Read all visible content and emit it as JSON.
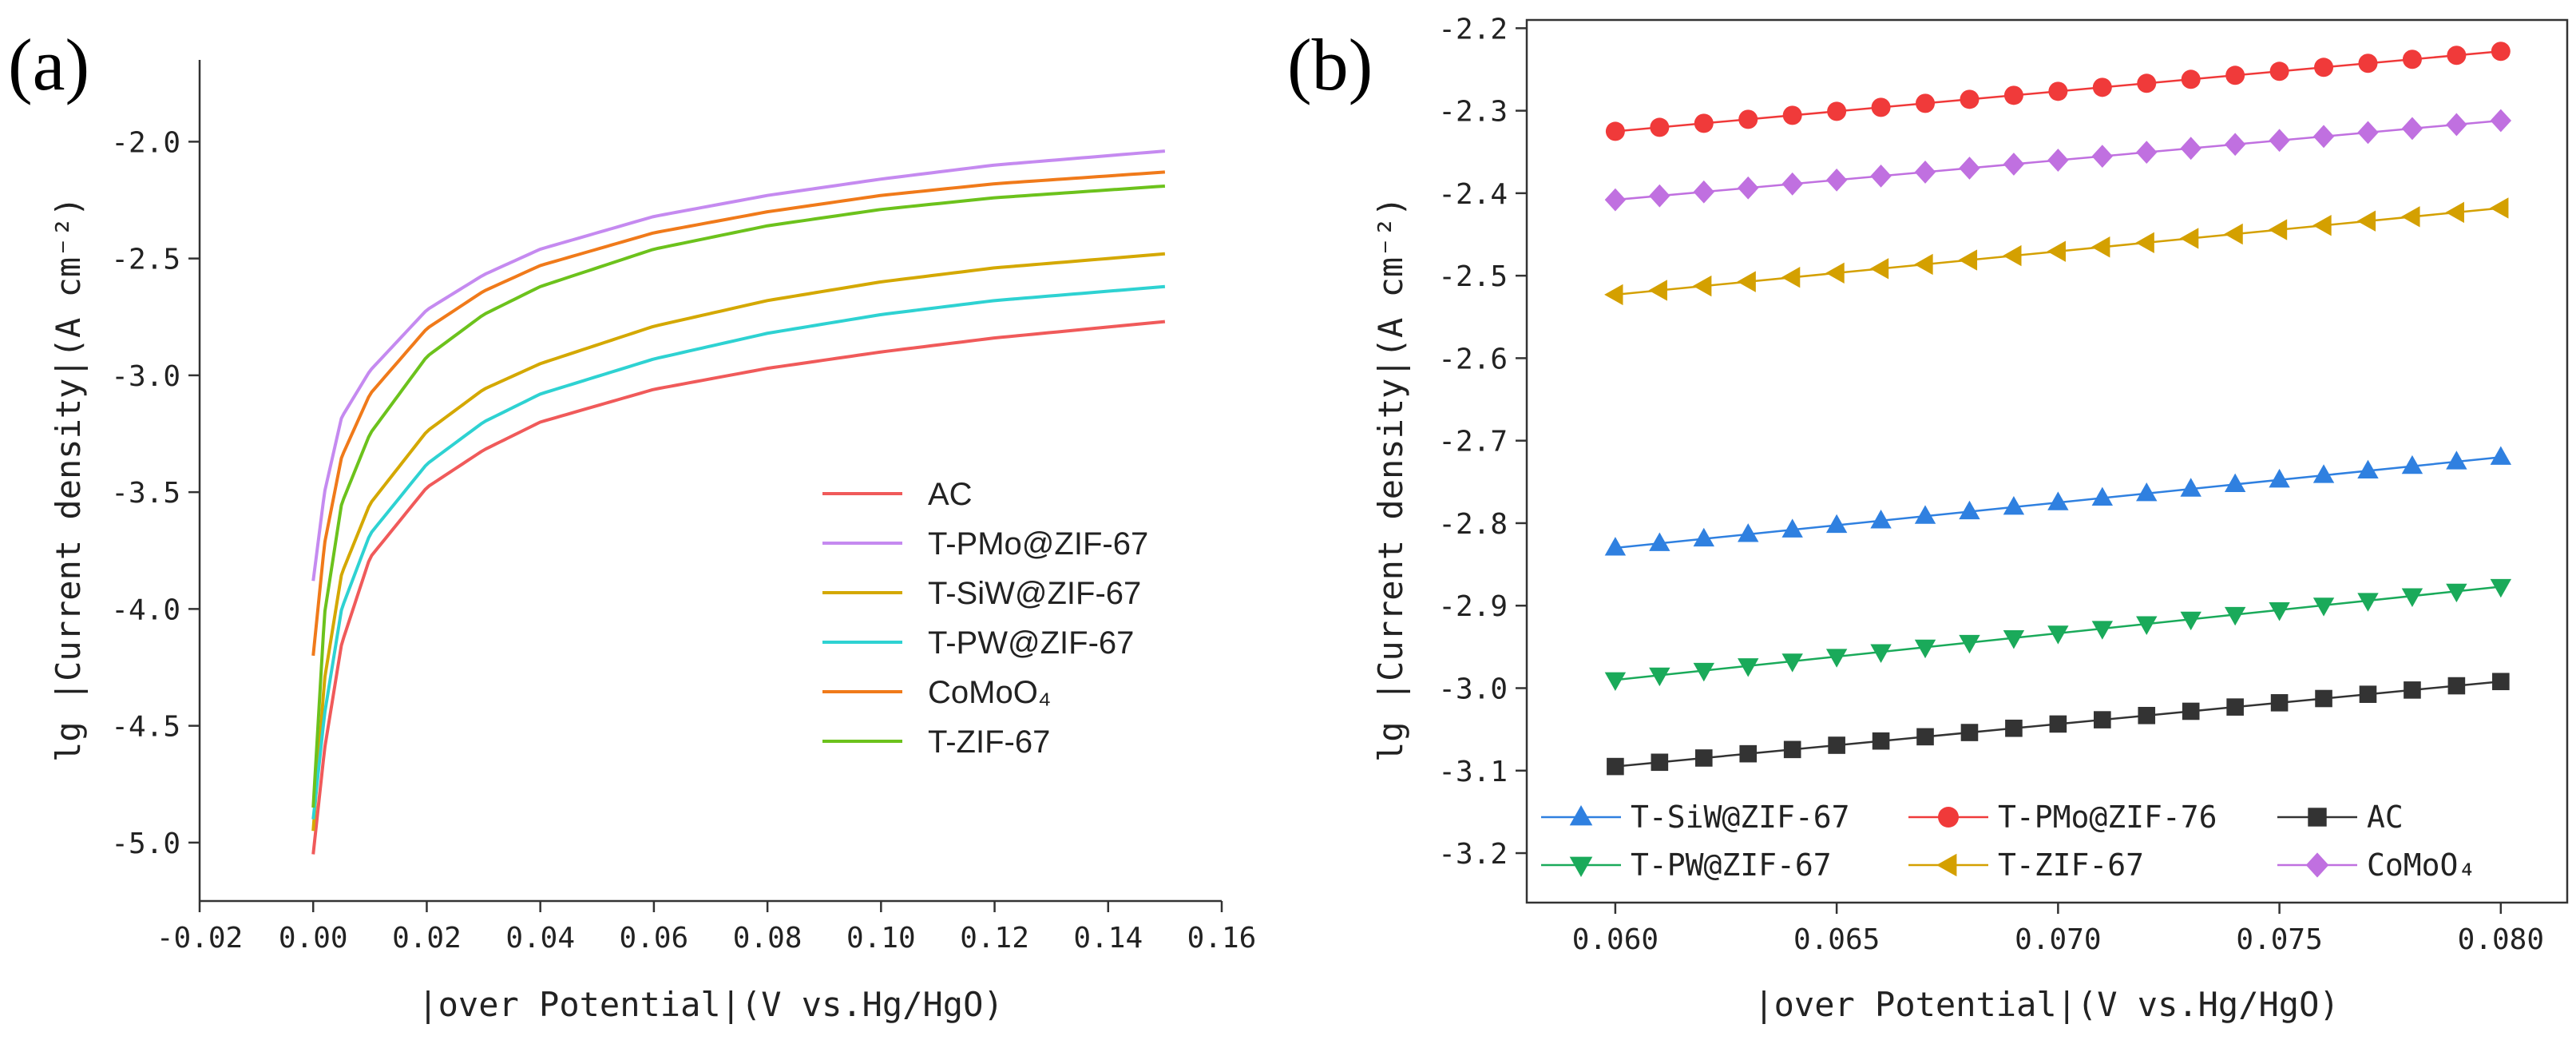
{
  "chart_data": [
    {
      "panel_label": "(a)",
      "type": "line",
      "title": "",
      "xlabel": "|over Potential|(V vs.Hg/HgO)",
      "ylabel": "lg |Current density|(A cm⁻²)",
      "xlim": [
        -0.02,
        0.16
      ],
      "ylim": [
        -5.25,
        -1.65
      ],
      "xticks": [
        -0.02,
        0.0,
        0.02,
        0.04,
        0.06,
        0.08,
        0.1,
        0.12,
        0.14,
        0.16
      ],
      "xtick_labels": [
        "-0.02",
        "0.00",
        "0.02",
        "0.04",
        "0.06",
        "0.08",
        "0.10",
        "0.12",
        "0.14",
        "0.16"
      ],
      "yticks": [
        -5.0,
        -4.5,
        -4.0,
        -3.5,
        -3.0,
        -2.5,
        -2.0
      ],
      "ytick_labels": [
        "-5.0",
        "-4.5",
        "-4.0",
        "-3.5",
        "-3.0",
        "-2.5",
        "-2.0"
      ],
      "legend_position": "lower-right",
      "series": [
        {
          "name": "AC",
          "color": "#f05a5a",
          "x": [
            0.0,
            0.002,
            0.005,
            0.01,
            0.02,
            0.03,
            0.04,
            0.06,
            0.08,
            0.1,
            0.12,
            0.15
          ],
          "y": [
            -5.05,
            -4.6,
            -4.15,
            -3.78,
            -3.48,
            -3.32,
            -3.2,
            -3.06,
            -2.97,
            -2.9,
            -2.84,
            -2.77
          ]
        },
        {
          "name": "T-PMo@ZIF-67",
          "color": "#c58af0",
          "x": [
            0.0,
            0.002,
            0.005,
            0.01,
            0.02,
            0.03,
            0.04,
            0.06,
            0.08,
            0.1,
            0.12,
            0.15
          ],
          "y": [
            -3.88,
            -3.5,
            -3.18,
            -2.98,
            -2.72,
            -2.57,
            -2.46,
            -2.32,
            -2.23,
            -2.16,
            -2.1,
            -2.04
          ]
        },
        {
          "name": "T-SiW@ZIF-67",
          "color": "#d4a800",
          "x": [
            0.0,
            0.002,
            0.005,
            0.01,
            0.02,
            0.03,
            0.04,
            0.06,
            0.08,
            0.1,
            0.12,
            0.15
          ],
          "y": [
            -4.95,
            -4.3,
            -3.85,
            -3.55,
            -3.24,
            -3.06,
            -2.95,
            -2.79,
            -2.68,
            -2.6,
            -2.54,
            -2.48
          ]
        },
        {
          "name": "T-PW@ZIF-67",
          "color": "#2ed2d2",
          "x": [
            0.0,
            0.002,
            0.005,
            0.01,
            0.02,
            0.03,
            0.04,
            0.06,
            0.08,
            0.1,
            0.12,
            0.15
          ],
          "y": [
            -4.9,
            -4.45,
            -4.0,
            -3.68,
            -3.38,
            -3.2,
            -3.08,
            -2.93,
            -2.82,
            -2.74,
            -2.68,
            -2.62
          ]
        },
        {
          "name": "CoMoO₄",
          "color": "#f07a1a",
          "x": [
            0.0,
            0.002,
            0.005,
            0.01,
            0.02,
            0.03,
            0.04,
            0.06,
            0.08,
            0.1,
            0.12,
            0.15
          ],
          "y": [
            -4.2,
            -3.72,
            -3.35,
            -3.08,
            -2.8,
            -2.64,
            -2.53,
            -2.39,
            -2.3,
            -2.23,
            -2.18,
            -2.13
          ]
        },
        {
          "name": "T-ZIF-67",
          "color": "#6cc21c",
          "x": [
            0.0,
            0.002,
            0.005,
            0.01,
            0.02,
            0.03,
            0.04,
            0.06,
            0.08,
            0.1,
            0.12,
            0.15
          ],
          "y": [
            -4.85,
            -4.02,
            -3.55,
            -3.25,
            -2.92,
            -2.74,
            -2.62,
            -2.46,
            -2.36,
            -2.29,
            -2.24,
            -2.19
          ]
        }
      ]
    },
    {
      "panel_label": "(b)",
      "type": "line",
      "title": "",
      "xlabel": "|over Potential|(V vs.Hg/HgO)",
      "ylabel": "lg |Current density|(A cm⁻²)",
      "xlim": [
        0.058,
        0.0815
      ],
      "ylim": [
        -3.26,
        -2.19
      ],
      "xticks": [
        0.06,
        0.065,
        0.07,
        0.075,
        0.08
      ],
      "xtick_labels": [
        "0.060",
        "0.065",
        "0.070",
        "0.075",
        "0.080"
      ],
      "yticks": [
        -3.2,
        -3.1,
        -3.0,
        -2.9,
        -2.8,
        -2.7,
        -2.6,
        -2.5,
        -2.4,
        -2.3,
        -2.2
      ],
      "ytick_labels": [
        "-3.2",
        "-3.1",
        "-3.0",
        "-2.9",
        "-2.8",
        "-2.7",
        "-2.6",
        "-2.5",
        "-2.4",
        "-2.3",
        "-2.2"
      ],
      "legend_position": "bottom",
      "series": [
        {
          "name": "T-SiW@ZIF-67",
          "color": "#2f80e0",
          "marker": "triangle-up",
          "x_start": 0.06,
          "x_end": 0.08,
          "y_start": -2.83,
          "y_end": -2.72
        },
        {
          "name": "T-PMo@ZIF-76",
          "color": "#f03a3a",
          "marker": "circle",
          "x_start": 0.06,
          "x_end": 0.08,
          "y_start": -2.325,
          "y_end": -2.228
        },
        {
          "name": "AC",
          "color": "#333333",
          "marker": "square",
          "x_start": 0.06,
          "x_end": 0.08,
          "y_start": -3.095,
          "y_end": -2.992
        },
        {
          "name": "T-PW@ZIF-67",
          "color": "#1aaa5a",
          "marker": "triangle-down",
          "x_start": 0.06,
          "x_end": 0.08,
          "y_start": -2.99,
          "y_end": -2.877
        },
        {
          "name": "T-ZIF-67",
          "color": "#d4a000",
          "marker": "triangle-left",
          "x_start": 0.06,
          "x_end": 0.08,
          "y_start": -2.523,
          "y_end": -2.418
        },
        {
          "name": "CoMoO₄",
          "color": "#c070e0",
          "marker": "diamond",
          "x_start": 0.06,
          "x_end": 0.08,
          "y_start": -2.408,
          "y_end": -2.312
        }
      ]
    }
  ]
}
